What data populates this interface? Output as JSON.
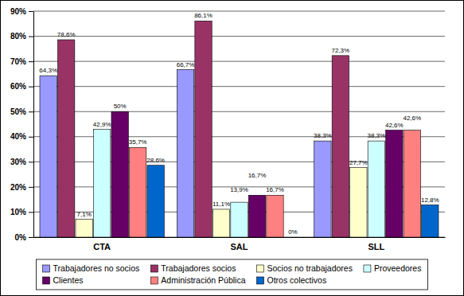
{
  "chart_data": {
    "type": "bar",
    "categories": [
      "CTA",
      "SAL",
      "SLL"
    ],
    "series": [
      {
        "name": "Trabajadores no socios",
        "color": "#9999ff",
        "values": [
          64.3,
          66.7,
          38.3
        ],
        "value_labels": [
          "64,3%",
          "66,7%",
          "38,3%"
        ]
      },
      {
        "name": "Trabajadores socios",
        "color": "#993366",
        "values": [
          78.6,
          86.1,
          72.3
        ],
        "value_labels": [
          "78,6%",
          "86,1%",
          "72,3%"
        ]
      },
      {
        "name": "Socios no trabajadores",
        "color": "#ffffcc",
        "values": [
          7.1,
          11.1,
          27.7
        ],
        "value_labels": [
          "7,1%",
          "11,1%",
          "27,7%"
        ]
      },
      {
        "name": "Proveedores",
        "color": "#ccffff",
        "values": [
          42.9,
          13.9,
          38.3
        ],
        "value_labels": [
          "42,9%",
          "13,9%",
          "38,3%"
        ]
      },
      {
        "name": "Clientes",
        "color": "#660066",
        "values": [
          50,
          16.7,
          42.6
        ],
        "value_labels": [
          "50%",
          "16,7%",
          "42,6%"
        ]
      },
      {
        "name": "Administración Pública",
        "color": "#ff8080",
        "values": [
          35.7,
          16.7,
          42.6
        ],
        "value_labels": [
          "35,7%",
          "16,7%",
          "42,6%"
        ]
      },
      {
        "name": "Otros colectivos",
        "color": "#0066cc",
        "values": [
          28.6,
          0,
          12.8
        ],
        "value_labels": [
          "28,6%",
          "0%",
          "12,8%"
        ]
      }
    ],
    "ylim": [
      0,
      90
    ],
    "yticks": [
      {
        "value": 0,
        "label": "0%"
      },
      {
        "value": 10,
        "label": "10%"
      },
      {
        "value": 20,
        "label": "20%"
      },
      {
        "value": 30,
        "label": "30%"
      },
      {
        "value": 40,
        "label": "40%"
      },
      {
        "value": 50,
        "label": "50%"
      },
      {
        "value": 60,
        "label": "60%"
      },
      {
        "value": 70,
        "label": "70%"
      },
      {
        "value": 80,
        "label": "80%"
      },
      {
        "value": 90,
        "label": "90%"
      }
    ],
    "grid": true,
    "legend": "bottom",
    "data_labels": true
  }
}
